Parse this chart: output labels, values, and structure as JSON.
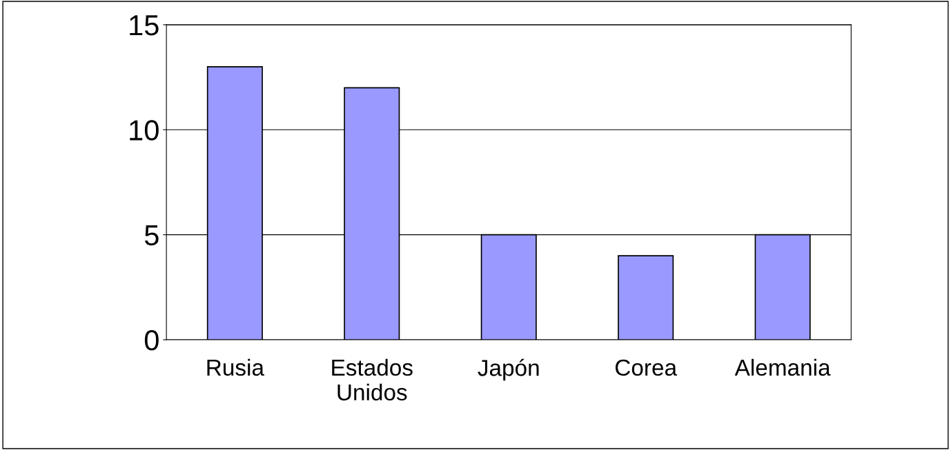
{
  "chart_data": {
    "type": "bar",
    "categories": [
      "Rusia",
      "Estados\nUnidos",
      "Japón",
      "Corea",
      "Alemania"
    ],
    "values": [
      13,
      12,
      5,
      4,
      5
    ],
    "color": "#9999ff",
    "ylim": [
      0,
      15
    ],
    "yticks": [
      0,
      5,
      10,
      15
    ],
    "grid": "y"
  }
}
